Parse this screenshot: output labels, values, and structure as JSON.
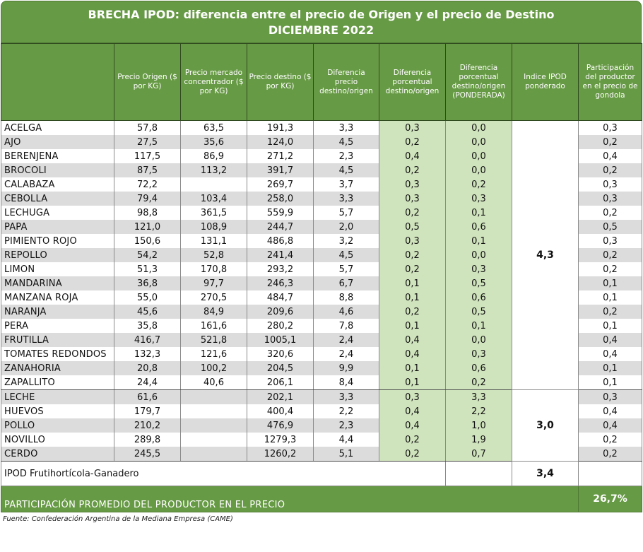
{
  "title_line1": "BRECHA IPOD: diferencia entre el precio de Origen y el precio de Destino",
  "title_line2": "DICIEMBRE 2022",
  "headers": [
    "",
    "Precio Origen ($ por KG)",
    "Precio mercado concentrador ($ por KG)",
    "Precio destino ($ por KG)",
    "Diferencia precio destino/origen",
    "Diferencia porcentual destino/origen",
    "Diferencia porcentual destino/origen (PONDERADA)",
    "Indice IPOD ponderado",
    "Participación del productor en el precio de gondola"
  ],
  "rows": [
    {
      "name": "ACELGA",
      "origen": "57,8",
      "mercado": "63,5",
      "destino": "191,3",
      "dif": "3,3",
      "pct": "0,3",
      "pond": "0,0",
      "part": "0,3"
    },
    {
      "name": "AJO",
      "origen": "27,5",
      "mercado": "35,6",
      "destino": "124,0",
      "dif": "4,5",
      "pct": "0,2",
      "pond": "0,0",
      "part": "0,2"
    },
    {
      "name": "BERENJENA",
      "origen": "117,5",
      "mercado": "86,9",
      "destino": "271,2",
      "dif": "2,3",
      "pct": "0,4",
      "pond": "0,0",
      "part": "0,4"
    },
    {
      "name": "BROCOLI",
      "origen": "87,5",
      "mercado": "113,2",
      "destino": "391,7",
      "dif": "4,5",
      "pct": "0,2",
      "pond": "0,0",
      "part": "0,2"
    },
    {
      "name": "CALABAZA",
      "origen": "72,2",
      "mercado": "",
      "destino": "269,7",
      "dif": "3,7",
      "pct": "0,3",
      "pond": "0,2",
      "part": "0,3"
    },
    {
      "name": "CEBOLLA",
      "origen": "79,4",
      "mercado": "103,4",
      "destino": "258,0",
      "dif": "3,3",
      "pct": "0,3",
      "pond": "0,3",
      "part": "0,3"
    },
    {
      "name": "LECHUGA",
      "origen": "98,8",
      "mercado": "361,5",
      "destino": "559,9",
      "dif": "5,7",
      "pct": "0,2",
      "pond": "0,1",
      "part": "0,2"
    },
    {
      "name": "PAPA",
      "origen": "121,0",
      "mercado": "108,9",
      "destino": "244,7",
      "dif": "2,0",
      "pct": "0,5",
      "pond": "0,6",
      "part": "0,5"
    },
    {
      "name": "PIMIENTO ROJO",
      "origen": "150,6",
      "mercado": "131,1",
      "destino": "486,8",
      "dif": "3,2",
      "pct": "0,3",
      "pond": "0,1",
      "part": "0,3"
    },
    {
      "name": "REPOLLO",
      "origen": "54,2",
      "mercado": "52,8",
      "destino": "241,4",
      "dif": "4,5",
      "pct": "0,2",
      "pond": "0,0",
      "part": "0,2"
    },
    {
      "name": "LIMON",
      "origen": "51,3",
      "mercado": "170,8",
      "destino": "293,2",
      "dif": "5,7",
      "pct": "0,2",
      "pond": "0,3",
      "part": "0,2"
    },
    {
      "name": "MANDARINA",
      "origen": "36,8",
      "mercado": "97,7",
      "destino": "246,3",
      "dif": "6,7",
      "pct": "0,1",
      "pond": "0,5",
      "part": "0,1"
    },
    {
      "name": "MANZANA ROJA",
      "origen": "55,0",
      "mercado": "270,5",
      "destino": "484,7",
      "dif": "8,8",
      "pct": "0,1",
      "pond": "0,6",
      "part": "0,1"
    },
    {
      "name": "NARANJA",
      "origen": "45,6",
      "mercado": "84,9",
      "destino": "209,6",
      "dif": "4,6",
      "pct": "0,2",
      "pond": "0,5",
      "part": "0,2"
    },
    {
      "name": "PERA",
      "origen": "35,8",
      "mercado": "161,6",
      "destino": "280,2",
      "dif": "7,8",
      "pct": "0,1",
      "pond": "0,1",
      "part": "0,1"
    },
    {
      "name": "FRUTILLA",
      "origen": "416,7",
      "mercado": "521,8",
      "destino": "1005,1",
      "dif": "2,4",
      "pct": "0,4",
      "pond": "0,0",
      "part": "0,4"
    },
    {
      "name": "TOMATES REDONDOS",
      "origen": "132,3",
      "mercado": "121,6",
      "destino": "320,6",
      "dif": "2,4",
      "pct": "0,4",
      "pond": "0,3",
      "part": "0,4"
    },
    {
      "name": "ZANAHORIA",
      "origen": "20,8",
      "mercado": "100,2",
      "destino": "204,5",
      "dif": "9,9",
      "pct": "0,1",
      "pond": "0,6",
      "part": "0,1"
    },
    {
      "name": "ZAPALLITO",
      "origen": "24,4",
      "mercado": "40,6",
      "destino": "206,1",
      "dif": "8,4",
      "pct": "0,1",
      "pond": "0,2",
      "part": "0,1"
    },
    {
      "name": "LECHE",
      "origen": "61,6",
      "mercado": "",
      "destino": "202,1",
      "dif": "3,3",
      "pct": "0,3",
      "pond": "3,3",
      "part": "0,3"
    },
    {
      "name": "HUEVOS",
      "origen": "179,7",
      "mercado": "",
      "destino": "400,4",
      "dif": "2,2",
      "pct": "0,4",
      "pond": "2,2",
      "part": "0,4"
    },
    {
      "name": "POLLO",
      "origen": "210,2",
      "mercado": "",
      "destino": "476,9",
      "dif": "2,3",
      "pct": "0,4",
      "pond": "1,0",
      "part": "0,4"
    },
    {
      "name": "NOVILLO",
      "origen": "289,8",
      "mercado": "",
      "destino": "1279,3",
      "dif": "4,4",
      "pct": "0,2",
      "pond": "1,9",
      "part": "0,2"
    },
    {
      "name": "CERDO",
      "origen": "245,5",
      "mercado": "",
      "destino": "1260,2",
      "dif": "5,1",
      "pct": "0,2",
      "pond": "0,7",
      "part": "0,2"
    }
  ],
  "group1_ipod": "4,3",
  "group2_ipod": "3,0",
  "summary_label": "IPOD Frutihortícola-Ganadero",
  "summary_value": "3,4",
  "footer_label": "PARTICIPACIÓN PROMEDIO DEL PRODUCTOR EN EL PRECIO",
  "footer_value": "26,7%",
  "source": "Fuente: Confederación Argentina de la Mediana Empresa (CAME)",
  "colors": {
    "header_green": "#679a45",
    "light_green": "#cfe3bd",
    "row_gray": "#dcdcdc"
  }
}
